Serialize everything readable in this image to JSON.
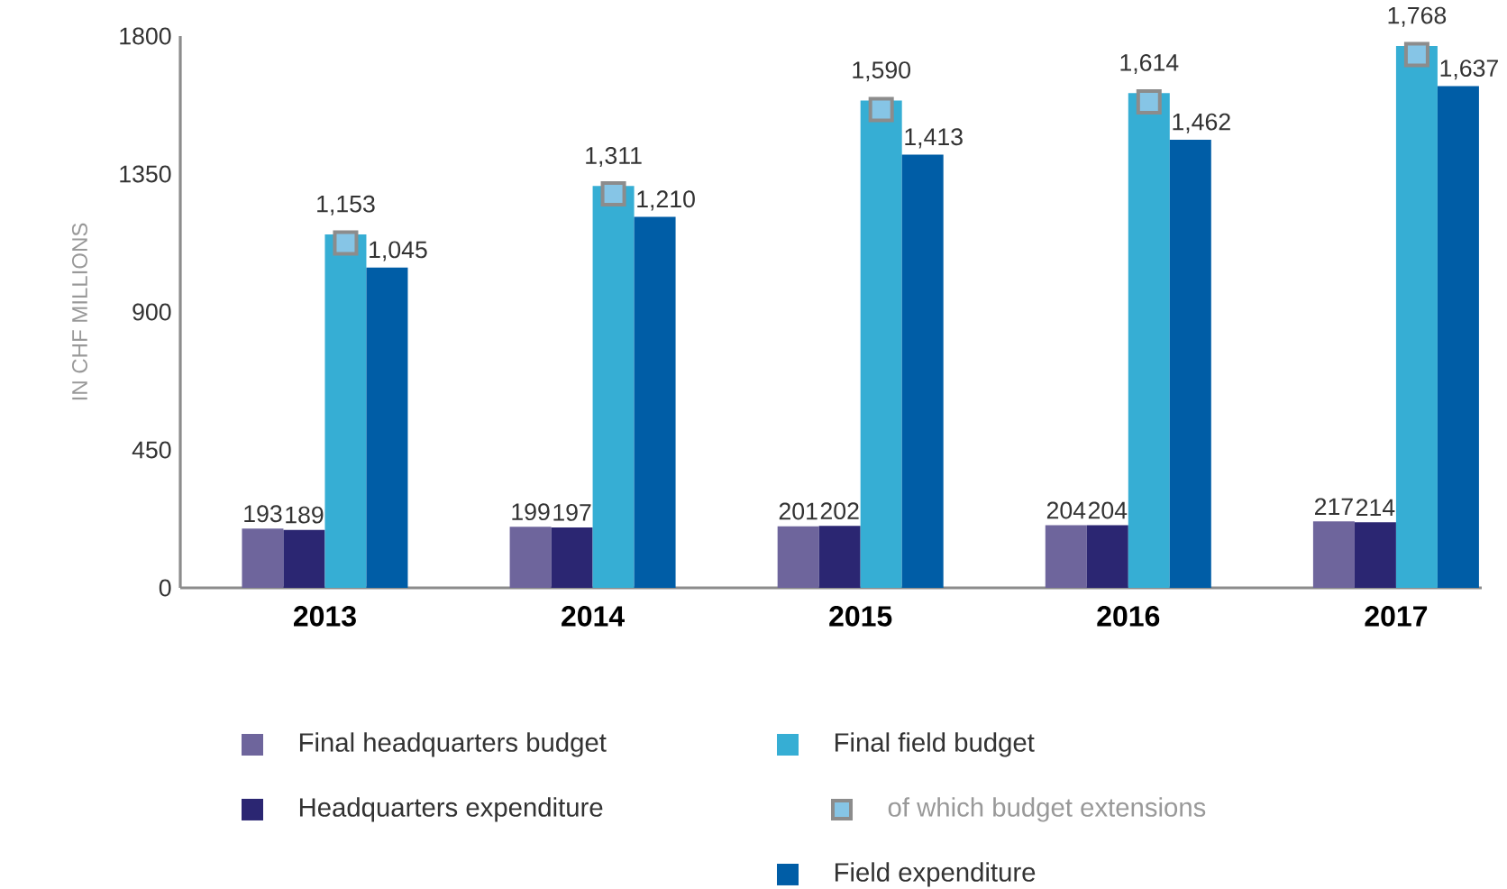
{
  "chart_data": {
    "type": "bar",
    "ylabel": "IN CHF MILLIONS",
    "categories": [
      "2013",
      "2014",
      "2015",
      "2016",
      "2017"
    ],
    "ylim": [
      0,
      1800
    ],
    "yticks": [
      0,
      450,
      900,
      1350,
      1800
    ],
    "grid": false,
    "legend": "bottom",
    "series": [
      {
        "name": "Final headquarters budget",
        "color": "#6e659c",
        "values": [
          193,
          199,
          201,
          204,
          217
        ],
        "value_labels": [
          "193",
          "199",
          "201",
          "204",
          "217"
        ]
      },
      {
        "name": "Headquarters expenditure",
        "color": "#2b2672",
        "values": [
          189,
          197,
          202,
          204,
          214
        ],
        "value_labels": [
          "189",
          "197",
          "202",
          "204",
          "214"
        ]
      },
      {
        "name": "Final field budget",
        "color": "#36aed4",
        "values": [
          1153,
          1311,
          1590,
          1614,
          1768
        ],
        "value_labels": [
          "1,153",
          "1,311",
          "1,590",
          "1,614",
          "1,768"
        ]
      },
      {
        "name": "of which budget extensions",
        "type": "scatter",
        "marker": "square",
        "color": "#86c5e6",
        "values": [
          1125,
          1285,
          1560,
          1585,
          1740
        ]
      },
      {
        "name": "Field expenditure",
        "color": "#005da6",
        "values": [
          1045,
          1210,
          1413,
          1462,
          1637
        ],
        "value_labels": [
          "1,045",
          "1,210",
          "1,413",
          "1,462",
          "1,637"
        ]
      }
    ]
  }
}
